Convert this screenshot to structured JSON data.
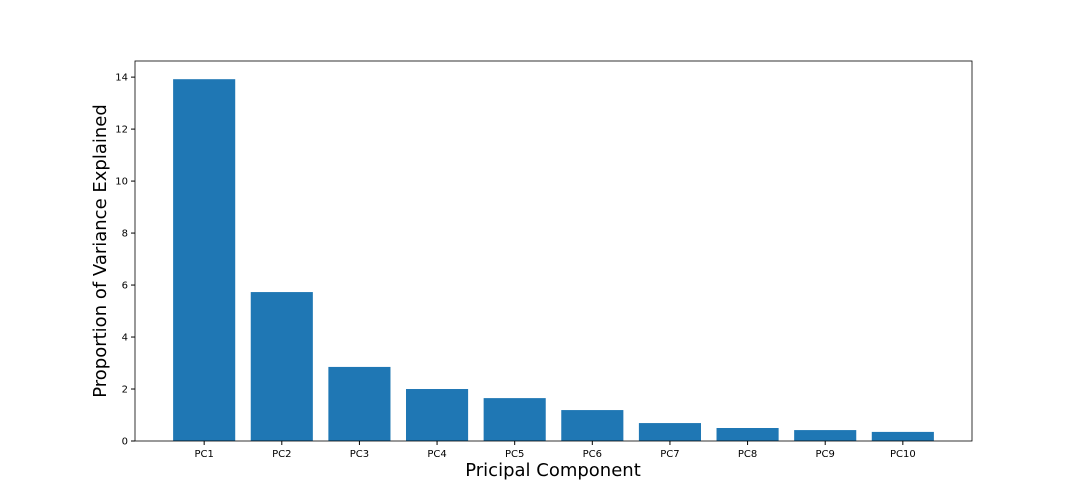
{
  "chart_data": {
    "type": "bar",
    "x_label": "Pricipal Component",
    "y_label": "Proportion of Variance Explained",
    "categories": [
      "PC1",
      "PC2",
      "PC3",
      "PC4",
      "PC5",
      "PC6",
      "PC7",
      "PC8",
      "PC9",
      "PC10"
    ],
    "values": [
      13.92,
      5.73,
      2.85,
      2.0,
      1.65,
      1.19,
      0.69,
      0.5,
      0.42,
      0.35
    ],
    "color": "#1f77b4",
    "ylim": [
      0,
      14.62
    ],
    "yticks": [
      0,
      2,
      4,
      6,
      8,
      10,
      12,
      14
    ],
    "grid": false
  }
}
